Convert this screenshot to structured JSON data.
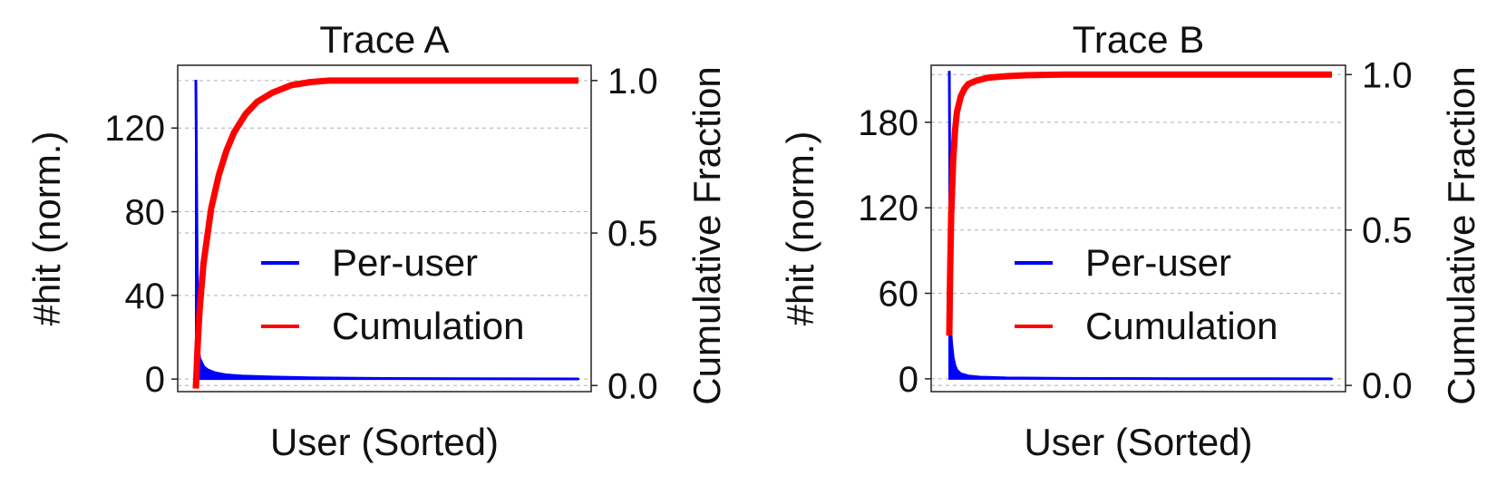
{
  "chart_data": [
    {
      "type": "line",
      "title": "Trace A",
      "xlabel": "User (Sorted)",
      "ylabel": "#hit (norm.)",
      "y2label": "Cumulative Fraction",
      "yticks": [
        0,
        40,
        80,
        120
      ],
      "y2ticks": [
        "0.0",
        "0.5",
        "1.0"
      ],
      "ylim": [
        -6,
        150
      ],
      "y2lim": [
        -0.02,
        1.05
      ],
      "grid": true,
      "legend_position": "center-right",
      "series": [
        {
          "name": "Per-user",
          "axis": "left",
          "color": "#0000ff",
          "x": [
            0,
            0.005,
            0.01,
            0.02,
            0.03,
            0.05,
            0.08,
            0.12,
            0.2,
            0.3,
            0.5,
            0.7,
            1.0
          ],
          "values": [
            143,
            17,
            10,
            6,
            4.5,
            3,
            2,
            1.5,
            1,
            0.6,
            0.3,
            0.15,
            0.05
          ]
        },
        {
          "name": "Cumulation",
          "axis": "right",
          "color": "#ff0000",
          "x": [
            0,
            0.005,
            0.01,
            0.02,
            0.04,
            0.06,
            0.08,
            0.1,
            0.13,
            0.16,
            0.2,
            0.25,
            0.3,
            0.35,
            0.4,
            0.5,
            0.7,
            1.0
          ],
          "values": [
            -0.01,
            0.14,
            0.25,
            0.4,
            0.58,
            0.69,
            0.77,
            0.83,
            0.89,
            0.93,
            0.96,
            0.985,
            0.995,
            1.0,
            1.0,
            1.0,
            1.0,
            1.0
          ]
        }
      ]
    },
    {
      "type": "line",
      "title": "Trace B",
      "xlabel": "User (Sorted)",
      "ylabel": "#hit (norm.)",
      "y2label": "Cumulative Fraction",
      "yticks": [
        0,
        60,
        120,
        180
      ],
      "y2ticks": [
        "0.0",
        "0.5",
        "1.0"
      ],
      "ylim": [
        -9,
        220
      ],
      "y2lim": [
        -0.02,
        1.03
      ],
      "grid": true,
      "legend_position": "center-right",
      "series": [
        {
          "name": "Per-user",
          "axis": "left",
          "color": "#0000ff",
          "x": [
            0,
            0.003,
            0.006,
            0.01,
            0.015,
            0.02,
            0.03,
            0.05,
            0.08,
            0.15,
            0.3,
            0.6,
            1.0
          ],
          "values": [
            216,
            38,
            25,
            15,
            9,
            6,
            3.5,
            2,
            1.2,
            0.6,
            0.3,
            0.1,
            0.02
          ]
        },
        {
          "name": "Cumulation",
          "axis": "right",
          "color": "#ff0000",
          "x": [
            0,
            0.002,
            0.005,
            0.01,
            0.015,
            0.02,
            0.03,
            0.04,
            0.05,
            0.07,
            0.1,
            0.15,
            0.2,
            0.3,
            0.5,
            1.0
          ],
          "values": [
            0.16,
            0.35,
            0.55,
            0.72,
            0.82,
            0.88,
            0.93,
            0.955,
            0.97,
            0.98,
            0.99,
            0.995,
            0.998,
            1.0,
            1.0,
            1.0
          ]
        }
      ]
    }
  ]
}
